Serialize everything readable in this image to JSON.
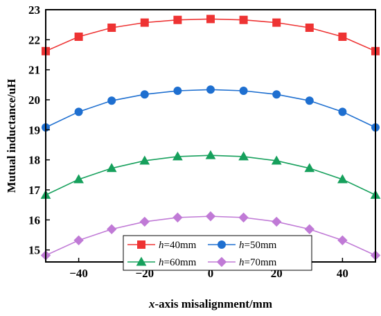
{
  "chart_data": {
    "type": "line",
    "xlabel_italic": "x",
    "xlabel_rest": "-axis misalignment/mm",
    "ylabel": "Mutual inductance/uH",
    "xlim": [
      -50,
      50
    ],
    "ylim": [
      14.6,
      23
    ],
    "xticks": [
      -40,
      -20,
      0,
      20,
      40
    ],
    "yticks": [
      15,
      16,
      17,
      18,
      19,
      20,
      21,
      22,
      23
    ],
    "x": [
      -50,
      -40,
      -30,
      -20,
      -10,
      0,
      10,
      20,
      30,
      40,
      50
    ],
    "series": [
      {
        "name_italic": "h",
        "name_rest": "=40mm",
        "color": "#ee3333",
        "marker": "square",
        "values": [
          21.62,
          22.1,
          22.4,
          22.57,
          22.66,
          22.69,
          22.66,
          22.57,
          22.4,
          22.1,
          21.62
        ]
      },
      {
        "name_italic": "h",
        "name_rest": "=50mm",
        "color": "#1e6fd0",
        "marker": "circle",
        "values": [
          19.08,
          19.6,
          19.97,
          20.18,
          20.3,
          20.34,
          20.3,
          20.18,
          19.97,
          19.6,
          19.08
        ]
      },
      {
        "name_italic": "h",
        "name_rest": "=60mm",
        "color": "#16a05c",
        "marker": "triangle",
        "values": [
          16.83,
          17.35,
          17.72,
          17.97,
          18.11,
          18.15,
          18.11,
          17.97,
          17.72,
          17.35,
          16.83
        ]
      },
      {
        "name_italic": "h",
        "name_rest": "=70mm",
        "color": "#c07ad6",
        "marker": "diamond",
        "values": [
          14.82,
          15.32,
          15.69,
          15.94,
          16.08,
          16.12,
          16.08,
          15.94,
          15.69,
          15.32,
          14.82
        ]
      }
    ]
  }
}
